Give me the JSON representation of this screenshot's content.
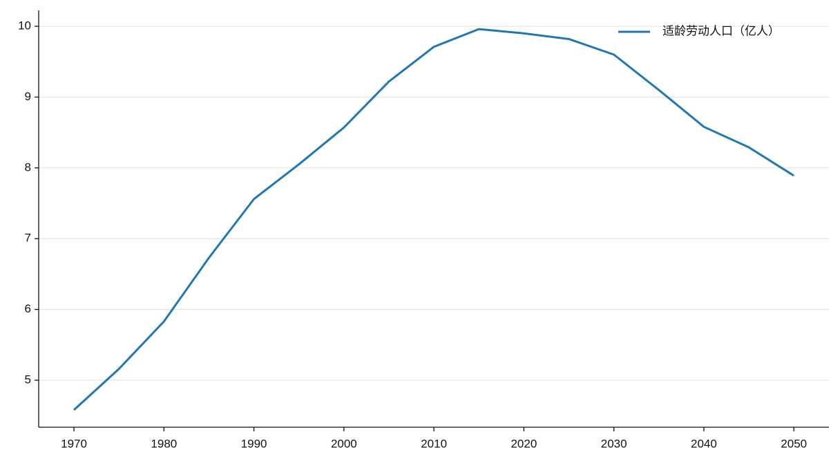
{
  "chart_data": {
    "type": "line",
    "x": [
      1970,
      1975,
      1980,
      1985,
      1990,
      1995,
      2000,
      2005,
      2010,
      2015,
      2020,
      2025,
      2030,
      2035,
      2040,
      2045,
      2050
    ],
    "series": [
      {
        "name": "适龄劳动人口（亿人）",
        "color": "#1f77b4",
        "values": [
          4.58,
          5.16,
          5.83,
          6.73,
          7.56,
          8.05,
          8.57,
          9.22,
          9.71,
          9.96,
          9.9,
          9.82,
          9.6,
          9.1,
          8.58,
          8.29,
          7.89
        ]
      }
    ],
    "xlim": [
      1966.08,
      2053.9
    ],
    "xticks": [
      1970,
      1980,
      1990,
      2000,
      2010,
      2020,
      2030,
      2040,
      2050
    ],
    "ylim": [
      4.336,
      10.225
    ],
    "yticks": [
      5,
      6,
      7,
      8,
      9,
      10
    ],
    "grid": true,
    "legend": "upper right"
  }
}
